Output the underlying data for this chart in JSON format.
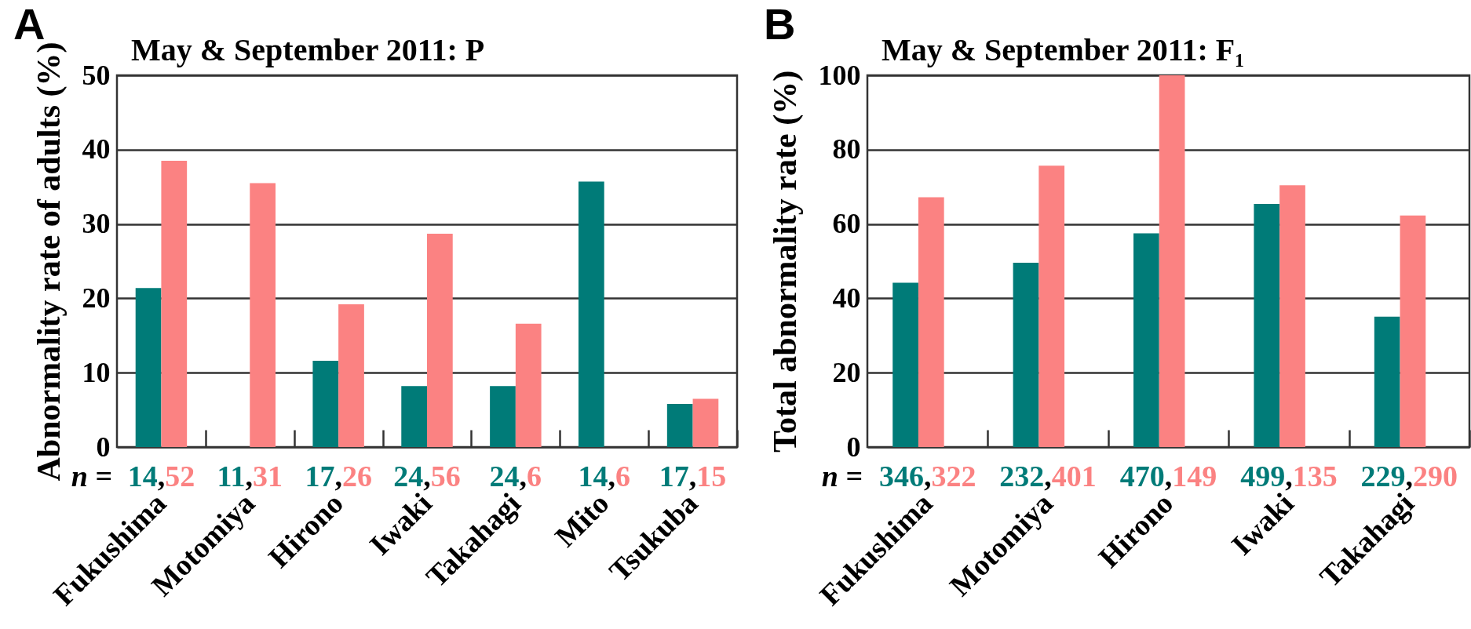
{
  "chart_data": [
    {
      "type": "bar",
      "title": "May & September 2011: P",
      "ylabel": "Abnormality rate of adults (%)",
      "categories": [
        "Fukushima",
        "Motomiya",
        "Hirono",
        "Iwaki",
        "Takahagi",
        "Mito",
        "Tsukuba"
      ],
      "series": [
        {
          "color": "#007b78",
          "values": [
            21.4,
            0,
            11.6,
            8.2,
            8.2,
            35.7,
            5.8
          ]
        },
        {
          "color": "#fb8282",
          "values": [
            38.5,
            35.5,
            19.2,
            28.7,
            16.6,
            0,
            6.5
          ]
        }
      ],
      "ylim": [
        0,
        50
      ],
      "yticks": [
        0,
        10,
        20,
        30,
        40,
        50
      ],
      "grid": "y",
      "annotations": [
        "A",
        "n =",
        "14,52",
        "11,31",
        "17,26",
        "24,56",
        "24,6",
        "14,6",
        "17,15"
      ]
    },
    {
      "type": "bar",
      "title": "May & September 2011: F₁",
      "ylabel": "Total abnormality rate (%)",
      "categories": [
        "Fukushima",
        "Motomiya",
        "Hirono",
        "Iwaki",
        "Takahagi"
      ],
      "series": [
        {
          "color": "#007b78",
          "values": [
            44.2,
            49.6,
            57.5,
            65.4,
            35.1
          ]
        },
        {
          "color": "#fb8282",
          "values": [
            67.2,
            75.7,
            100,
            70.4,
            62.3
          ]
        }
      ],
      "ylim": [
        0,
        100
      ],
      "yticks": [
        0,
        20,
        40,
        60,
        80,
        100
      ],
      "grid": "y",
      "annotations": [
        "B",
        "n =",
        "346,322",
        "232,401",
        "470,149",
        "499,135",
        "229,290"
      ]
    }
  ]
}
